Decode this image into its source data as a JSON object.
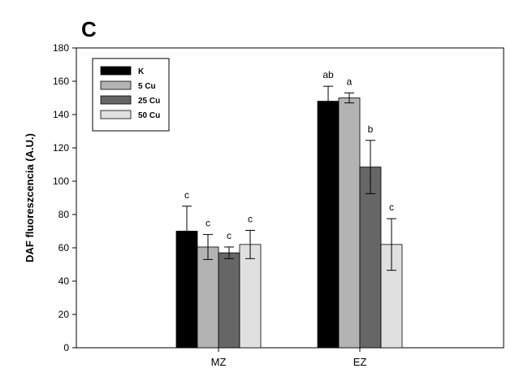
{
  "chart_data": {
    "type": "bar",
    "panel_label": "C",
    "title": "",
    "xlabel": "",
    "ylabel": "DAF fluoreszcencia (A.U.)",
    "ylim": [
      0,
      180
    ],
    "yticks": [
      0,
      20,
      40,
      60,
      80,
      100,
      120,
      140,
      160,
      180
    ],
    "categories": [
      "MZ",
      "EZ"
    ],
    "grid": false,
    "legend_position": "top-left",
    "series": [
      {
        "name": "K",
        "color": "#000000",
        "values": [
          70,
          148
        ],
        "errors": [
          15,
          9
        ],
        "labels": [
          "c",
          "ab"
        ]
      },
      {
        "name": "5 Cu",
        "color": "#b3b3b3",
        "values": [
          60.5,
          150
        ],
        "errors": [
          7.5,
          3
        ],
        "labels": [
          "c",
          "a"
        ]
      },
      {
        "name": "25 Cu",
        "color": "#666666",
        "values": [
          57,
          108.5
        ],
        "errors": [
          3.5,
          16
        ],
        "labels": [
          "c",
          "b"
        ]
      },
      {
        "name": "50 Cu",
        "color": "#e0e0e0",
        "values": [
          62,
          62
        ],
        "errors": [
          8.5,
          15.5
        ],
        "labels": [
          "c",
          "c"
        ]
      }
    ]
  }
}
